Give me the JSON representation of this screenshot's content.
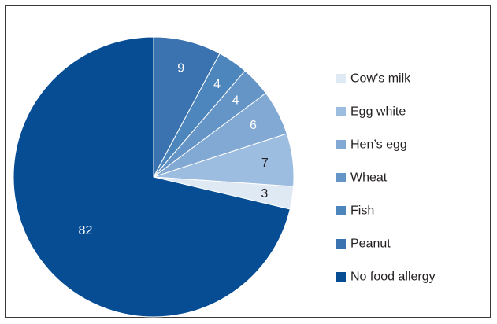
{
  "chart_data": {
    "type": "pie",
    "title": "",
    "start": "top",
    "direction": "clockwise",
    "slices": [
      {
        "label": "Peanut",
        "value": 9,
        "color": "#3a73b0",
        "label_color": "#ffffff"
      },
      {
        "label": "Fish",
        "value": 4,
        "color": "#4d85bd",
        "label_color": "#ffffff"
      },
      {
        "label": "Wheat",
        "value": 4,
        "color": "#6594c7",
        "label_color": "#ffffff"
      },
      {
        "label": "Hen’s egg",
        "value": 6,
        "color": "#82a9d3",
        "label_color": "#ffffff"
      },
      {
        "label": "Egg white",
        "value": 7,
        "color": "#9dbde0",
        "label_color": "#231f20"
      },
      {
        "label": "Cow’s milk",
        "value": 3,
        "color": "#dfe9f4",
        "label_color": "#231f20"
      },
      {
        "label": "No food allergy",
        "value": 82,
        "color": "#064d94",
        "label_color": "#ffffff"
      }
    ],
    "legend": {
      "position": "right",
      "order": [
        "Cow’s milk",
        "Egg white",
        "Hen’s egg",
        "Wheat",
        "Fish",
        "Peanut",
        "No food allergy"
      ]
    }
  }
}
